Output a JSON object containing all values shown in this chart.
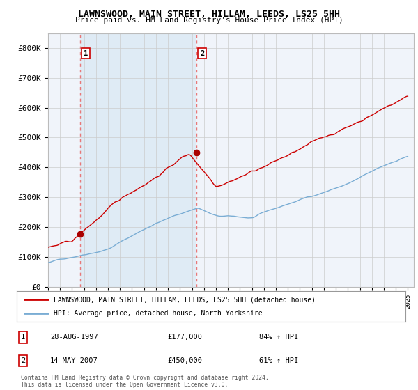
{
  "title": "LAWNSWOOD, MAIN STREET, HILLAM, LEEDS, LS25 5HH",
  "subtitle": "Price paid vs. HM Land Registry's House Price Index (HPI)",
  "ylim": [
    0,
    850000
  ],
  "yticks": [
    0,
    100000,
    200000,
    300000,
    400000,
    500000,
    600000,
    700000,
    800000
  ],
  "ytick_labels": [
    "£0",
    "£100K",
    "£200K",
    "£300K",
    "£400K",
    "£500K",
    "£600K",
    "£700K",
    "£800K"
  ],
  "sale1_date": 1997.65,
  "sale1_price": 177000,
  "sale1_label": "1",
  "sale1_text": "28-AUG-1997",
  "sale1_amount": "£177,000",
  "sale1_hpi": "84% ↑ HPI",
  "sale2_date": 2007.37,
  "sale2_price": 450000,
  "sale2_label": "2",
  "sale2_text": "14-MAY-2007",
  "sale2_amount": "£450,000",
  "sale2_hpi": "61% ↑ HPI",
  "line1_color": "#cc0000",
  "line2_color": "#7aadd4",
  "marker_color": "#aa0000",
  "dashed_color": "#e87878",
  "shade_color": "#ddeeff",
  "legend1": "LAWNSWOOD, MAIN STREET, HILLAM, LEEDS, LS25 5HH (detached house)",
  "legend2": "HPI: Average price, detached house, North Yorkshire",
  "footer": "Contains HM Land Registry data © Crown copyright and database right 2024.\nThis data is licensed under the Open Government Licence v3.0.",
  "background_color": "#ffffff",
  "plot_bg_color": "#f0f4fa",
  "grid_color": "#cccccc",
  "xmin": 1995,
  "xmax": 2025.5
}
